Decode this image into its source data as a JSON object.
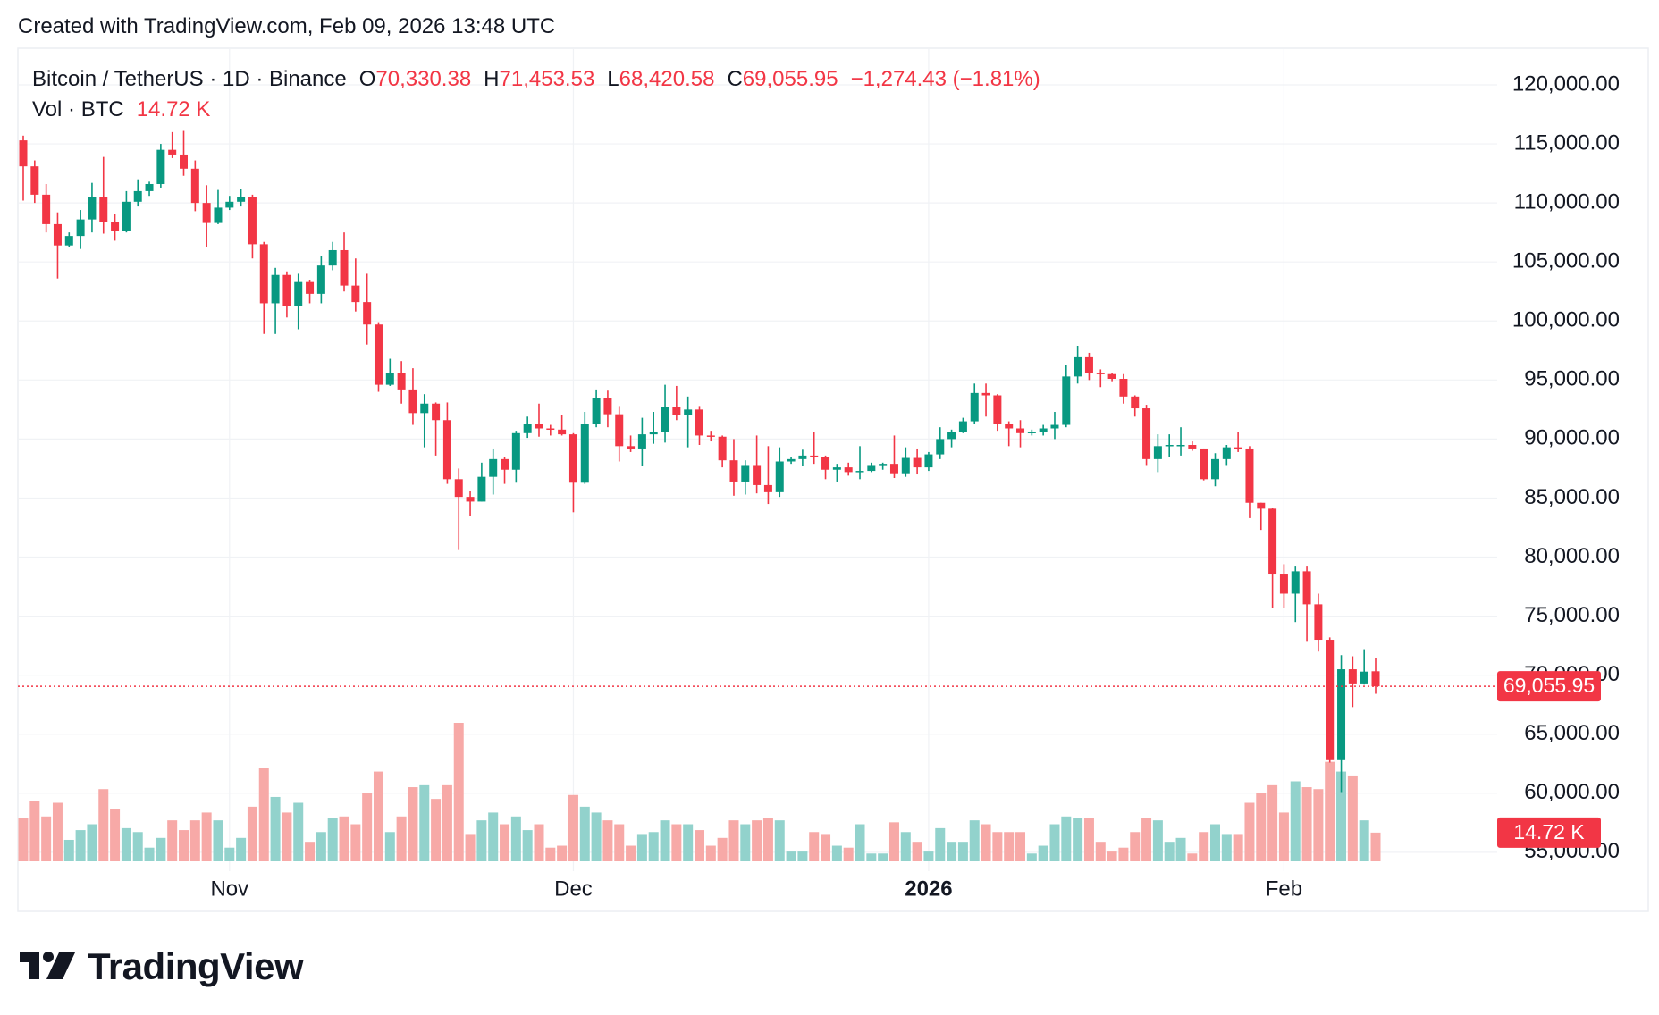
{
  "header": {
    "created": "Created with TradingView.com, Feb 09, 2026 13:48 UTC"
  },
  "chart_data": {
    "type": "candlestick",
    "title": "Bitcoin / TetherUS · 1D · Binance",
    "legend": {
      "open_key": "O",
      "open": "70,330.38",
      "high_key": "H",
      "high": "71,453.53",
      "low_key": "L",
      "low": "68,420.58",
      "close_key": "C",
      "close": "69,055.95",
      "change": "−1,274.43 (−1.81%)"
    },
    "categories": [
      null,
      null,
      null,
      null,
      null,
      null,
      null,
      null,
      null,
      null,
      null,
      null,
      null,
      null,
      null,
      null,
      null,
      null,
      "Nov",
      null,
      null,
      null,
      null,
      null,
      null,
      null,
      null,
      null,
      null,
      null,
      null,
      null,
      null,
      null,
      null,
      null,
      null,
      null,
      null,
      null,
      null,
      null,
      null,
      null,
      null,
      null,
      null,
      null,
      "Dec",
      null,
      null,
      null,
      null,
      null,
      null,
      null,
      null,
      null,
      null,
      null,
      null,
      null,
      null,
      null,
      null,
      null,
      null,
      null,
      null,
      null,
      null,
      null,
      null,
      null,
      null,
      null,
      null,
      null,
      null,
      "2026",
      null,
      null,
      null,
      null,
      null,
      null,
      null,
      null,
      null,
      null,
      null,
      null,
      null,
      null,
      null,
      null,
      null,
      null,
      null,
      null,
      null,
      null,
      null,
      null,
      null,
      null,
      null,
      null,
      null,
      null,
      "Feb",
      null,
      null,
      null,
      null,
      null,
      null,
      null,
      null
    ],
    "open": [
      115300,
      113100,
      110700,
      108200,
      106400,
      107200,
      108600,
      110500,
      108400,
      107600,
      110100,
      111000,
      111600,
      114500,
      114100,
      112900,
      110000,
      108300,
      109600,
      110100,
      110500,
      106500,
      101500,
      103900,
      101300,
      103300,
      102300,
      104700,
      106000,
      103000,
      101600,
      99700,
      94600,
      95600,
      94200,
      92200,
      93000,
      91600,
      86600,
      85100,
      84700,
      86800,
      88300,
      87400,
      90500,
      91300,
      90900,
      90800,
      90400,
      86300,
      91300,
      93500,
      92100,
      89400,
      89200,
      90400,
      90600,
      92700,
      92000,
      92500,
      90300,
      90200,
      88200,
      86400,
      87800,
      86100,
      85500,
      88100,
      88300,
      88600,
      88500,
      87400,
      87600,
      87200,
      87300,
      87800,
      87900,
      87100,
      88400,
      87600,
      88700,
      90000,
      90600,
      91500,
      93900,
      93700,
      91300,
      90900,
      90500,
      90600,
      90900,
      91200,
      95300,
      97000,
      95600,
      95500,
      95100,
      93600,
      92600,
      88300,
      89400,
      89500,
      89500,
      89200,
      86600,
      88300,
      89300,
      89200,
      84600,
      84100,
      78600,
      76900,
      78800,
      76000,
      73000,
      62800,
      70500,
      69300,
      70330.38
    ],
    "high": [
      115700,
      113600,
      111600,
      109200,
      107500,
      109400,
      111700,
      113900,
      109100,
      111000,
      112000,
      111800,
      115000,
      116000,
      116100,
      113600,
      111500,
      111100,
      110600,
      111200,
      110700,
      106700,
      104500,
      104200,
      104000,
      103500,
      105500,
      106700,
      107500,
      105300,
      104000,
      99900,
      96800,
      96600,
      96000,
      93800,
      93100,
      93100,
      87500,
      85600,
      88000,
      89200,
      88500,
      90700,
      91900,
      93000,
      91200,
      92000,
      90500,
      92300,
      94200,
      94100,
      92800,
      90300,
      91800,
      92300,
      94600,
      94500,
      93600,
      92800,
      90700,
      90300,
      90000,
      88200,
      90300,
      89400,
      89300,
      88500,
      89100,
      90600,
      88600,
      87900,
      88000,
      89400,
      88000,
      88000,
      90300,
      89300,
      89200,
      88900,
      91000,
      90800,
      91800,
      94700,
      94700,
      93800,
      91500,
      91600,
      90800,
      91200,
      92300,
      96300,
      97900,
      97300,
      95900,
      95600,
      95500,
      93700,
      92900,
      90400,
      90400,
      91000,
      89800,
      89200,
      88800,
      89500,
      90600,
      89400,
      84600,
      84200,
      79400,
      79200,
      79200,
      76900,
      73200,
      71700,
      71600,
      72200,
      71453.53
    ],
    "low": [
      110200,
      110000,
      107500,
      103600,
      106300,
      106100,
      107500,
      107400,
      106800,
      107500,
      109700,
      110600,
      111300,
      113800,
      112300,
      109300,
      106300,
      108200,
      109400,
      109700,
      105300,
      98900,
      98900,
      100300,
      99300,
      101500,
      101500,
      104300,
      102500,
      100800,
      98000,
      94000,
      94500,
      93000,
      91200,
      89300,
      88600,
      86200,
      80600,
      83500,
      84700,
      85300,
      86200,
      86300,
      90100,
      90200,
      90300,
      90300,
      83800,
      86200,
      91000,
      91000,
      88100,
      88900,
      87700,
      89600,
      89700,
      91600,
      89300,
      89500,
      89800,
      87600,
      85200,
      85300,
      85400,
      84500,
      85100,
      87900,
      87700,
      87900,
      86600,
      86400,
      86900,
      86600,
      87200,
      87400,
      86700,
      86800,
      87000,
      87300,
      88300,
      89300,
      90500,
      91300,
      91900,
      90700,
      89400,
      89300,
      90300,
      90300,
      90000,
      91000,
      94700,
      95000,
      94400,
      94900,
      93000,
      91900,
      87800,
      87200,
      88500,
      88600,
      89000,
      86500,
      86000,
      87800,
      88900,
      83300,
      82300,
      75700,
      75700,
      74500,
      72900,
      72000,
      62600,
      60100,
      67300,
      69200,
      68420.58
    ],
    "close": [
      113100,
      110700,
      108200,
      106400,
      107200,
      108600,
      110500,
      108400,
      107600,
      110100,
      111000,
      111600,
      114500,
      114100,
      112900,
      110000,
      108300,
      109600,
      110100,
      110500,
      106500,
      101500,
      103900,
      101300,
      103300,
      102300,
      104700,
      106000,
      103000,
      101600,
      99700,
      94600,
      95600,
      94200,
      92200,
      93000,
      91600,
      86600,
      85100,
      84700,
      86800,
      88300,
      87400,
      90500,
      91300,
      90900,
      90800,
      90400,
      86300,
      91300,
      93500,
      92100,
      89400,
      89200,
      90400,
      90600,
      92700,
      92000,
      92500,
      90300,
      90200,
      88200,
      86400,
      87800,
      86100,
      85500,
      88100,
      88300,
      88600,
      88500,
      87400,
      87600,
      87200,
      87300,
      87800,
      87900,
      87100,
      88400,
      87600,
      88700,
      90000,
      90600,
      91500,
      93900,
      93700,
      91300,
      90900,
      90500,
      90600,
      90900,
      91200,
      95300,
      97000,
      95600,
      95500,
      95100,
      93600,
      92600,
      88300,
      89400,
      89500,
      89500,
      89200,
      86600,
      88300,
      89300,
      89200,
      84600,
      84100,
      78600,
      76900,
      78800,
      76000,
      73000,
      62800,
      70500,
      69300,
      70300,
      69055.95
    ],
    "up_color": "#089981",
    "down_color": "#f23645",
    "ylim": [
      53400,
      122800
    ],
    "yticks": [
      {
        "value": 55000,
        "label": "55,000.00"
      },
      {
        "value": 60000,
        "label": "60,000.00"
      },
      {
        "value": 65000,
        "label": "65,000.00"
      },
      {
        "value": 70000,
        "label": "70,000.00"
      },
      {
        "value": 75000,
        "label": "75,000.00"
      },
      {
        "value": 80000,
        "label": "80,000.00"
      },
      {
        "value": 85000,
        "label": "85,000.00"
      },
      {
        "value": 90000,
        "label": "90,000.00"
      },
      {
        "value": 95000,
        "label": "95,000.00"
      },
      {
        "value": 100000,
        "label": "100,000.00"
      },
      {
        "value": 105000,
        "label": "105,000.00"
      },
      {
        "value": 110000,
        "label": "110,000.00"
      },
      {
        "value": 115000,
        "label": "115,000.00"
      },
      {
        "value": 120000,
        "label": "120,000.00"
      }
    ],
    "last_price_label": "69,055.95",
    "grid": true,
    "volume": {
      "name": "Vol · BTC",
      "value_label": "14.72 K",
      "up_color": "#92d2cc",
      "down_color": "#f7a9a7",
      "values": [
        22,
        31,
        23,
        30,
        11,
        16,
        19,
        37,
        27,
        17,
        15,
        7,
        12,
        21,
        16,
        21,
        25,
        21,
        7,
        12,
        28,
        48,
        33,
        25,
        30,
        10,
        15,
        22,
        23,
        19,
        35,
        46,
        15,
        23,
        38,
        39,
        32,
        39,
        71,
        14,
        21,
        25,
        19,
        23,
        16,
        19,
        7,
        8,
        34,
        28,
        25,
        21,
        19,
        8,
        14,
        15,
        21,
        19,
        19,
        16,
        8,
        12,
        21,
        19,
        21,
        22,
        21,
        5,
        5,
        15,
        14,
        8,
        7,
        19,
        4,
        4,
        20,
        15,
        10,
        5,
        17,
        10,
        10,
        21,
        19,
        15,
        15,
        15,
        4,
        8,
        19,
        23,
        22,
        22,
        10,
        5,
        7,
        15,
        22,
        21,
        10,
        12,
        4,
        15,
        19,
        14,
        14,
        30,
        35,
        39,
        25,
        41,
        38,
        37,
        51,
        46,
        44,
        21,
        14.72
      ]
    }
  },
  "footer": {
    "logo": "TradingView"
  }
}
